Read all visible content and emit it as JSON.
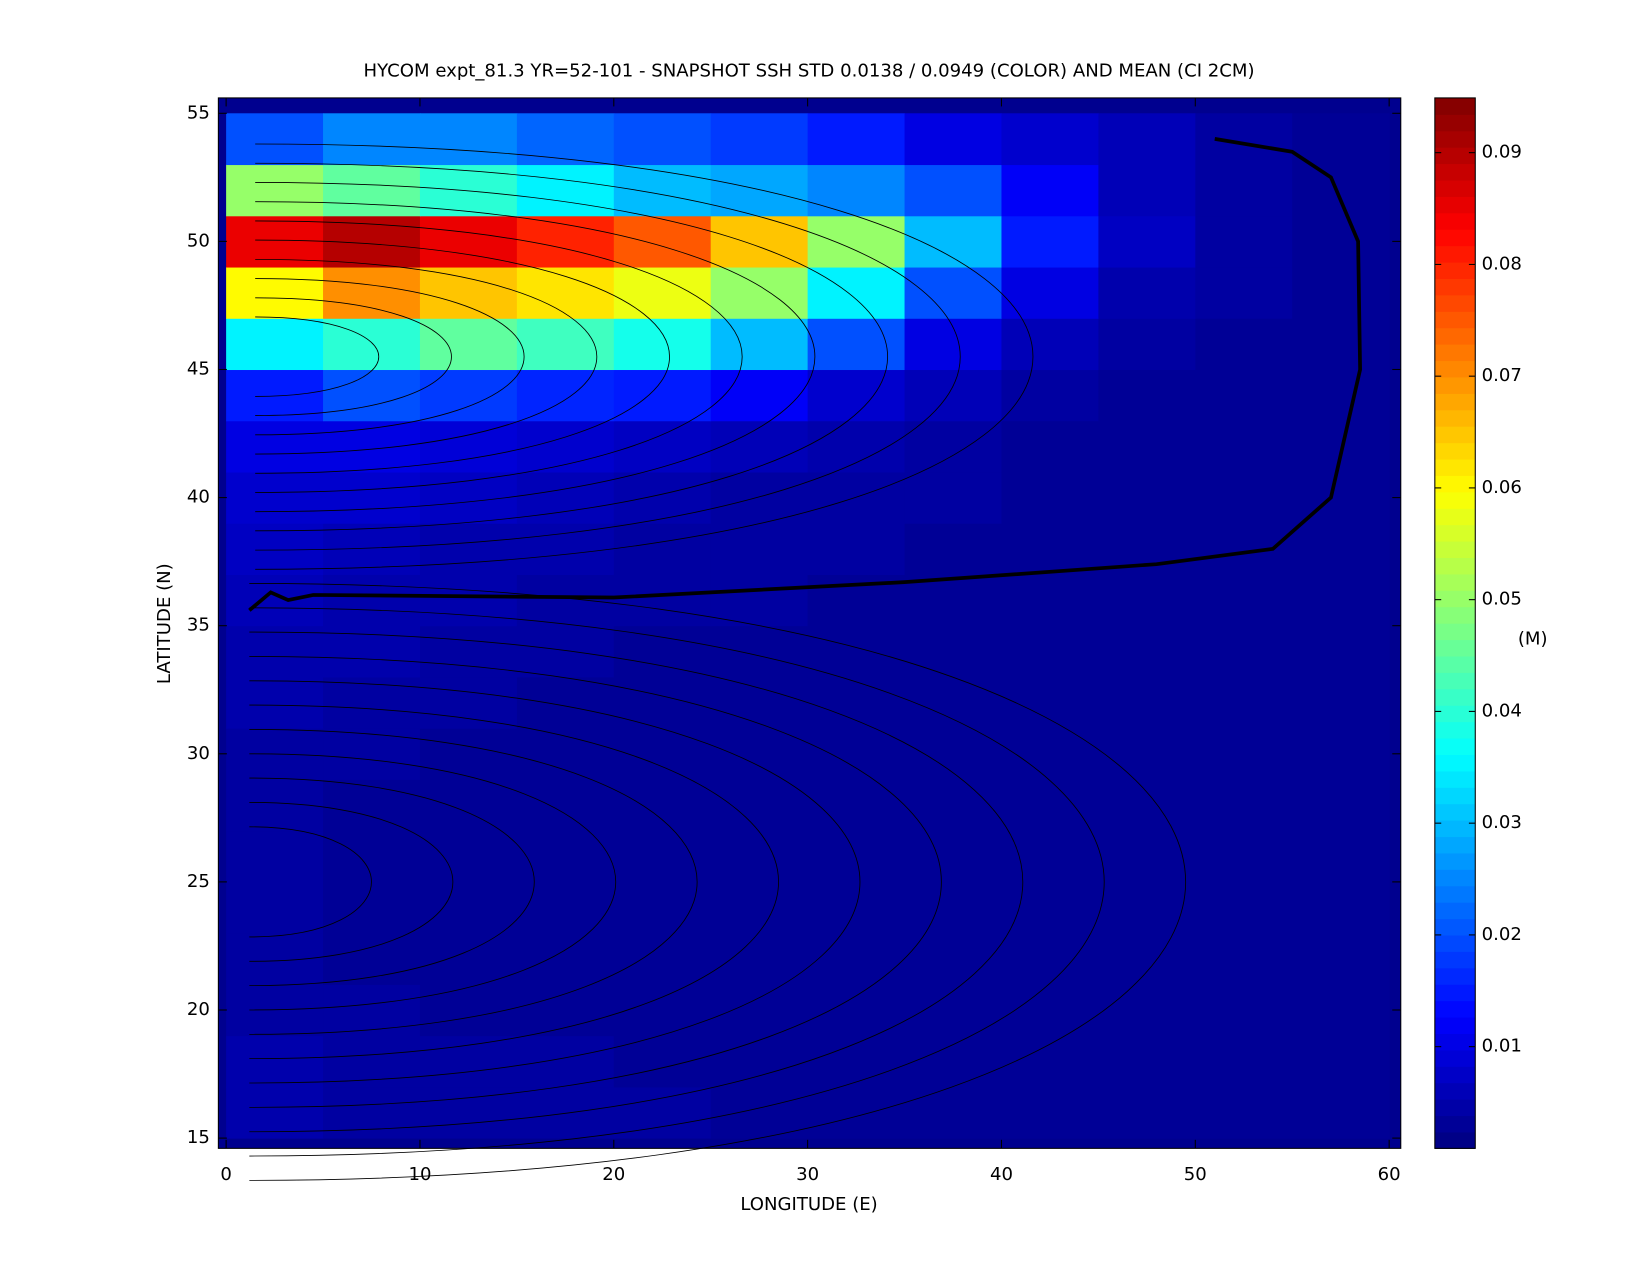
{
  "chart_data": {
    "type": "heatmap",
    "title": "HYCOM expt_81.3 YR=52-101 - SNAPSHOT SSH STD 0.0138 / 0.0949 (COLOR) AND MEAN (CI 2CM)",
    "x_label": "LONGITUDE (E)",
    "y_label": "LATITUDE (N)",
    "colorbar_label": "(M)",
    "x": [
      2.5,
      7.5,
      12.5,
      17.5,
      22.5,
      27.5,
      32.5,
      37.5,
      42.5,
      47.5,
      52.5,
      57.5
    ],
    "y": [
      16,
      18,
      20,
      22,
      24,
      26,
      28,
      30,
      32,
      34,
      36,
      38,
      40,
      42,
      44,
      46,
      48,
      50,
      52,
      54
    ],
    "values": [
      [
        0.005,
        0.004,
        0.004,
        0.004,
        0.004,
        0.003,
        0.003,
        0.003,
        0.003,
        0.003,
        0.003,
        0.003
      ],
      [
        0.005,
        0.004,
        0.004,
        0.004,
        0.003,
        0.003,
        0.003,
        0.003,
        0.003,
        0.003,
        0.003,
        0.003
      ],
      [
        0.004,
        0.004,
        0.003,
        0.003,
        0.003,
        0.003,
        0.003,
        0.003,
        0.003,
        0.003,
        0.003,
        0.003
      ],
      [
        0.004,
        0.003,
        0.003,
        0.003,
        0.003,
        0.003,
        0.003,
        0.003,
        0.003,
        0.003,
        0.003,
        0.003
      ],
      [
        0.004,
        0.003,
        0.003,
        0.003,
        0.003,
        0.003,
        0.003,
        0.003,
        0.003,
        0.003,
        0.003,
        0.003
      ],
      [
        0.004,
        0.003,
        0.003,
        0.003,
        0.003,
        0.003,
        0.003,
        0.003,
        0.003,
        0.003,
        0.003,
        0.003
      ],
      [
        0.004,
        0.003,
        0.003,
        0.003,
        0.003,
        0.003,
        0.003,
        0.003,
        0.003,
        0.003,
        0.003,
        0.003
      ],
      [
        0.004,
        0.004,
        0.003,
        0.003,
        0.003,
        0.003,
        0.003,
        0.003,
        0.003,
        0.003,
        0.003,
        0.003
      ],
      [
        0.005,
        0.004,
        0.004,
        0.003,
        0.003,
        0.003,
        0.003,
        0.003,
        0.003,
        0.003,
        0.003,
        0.003
      ],
      [
        0.005,
        0.005,
        0.004,
        0.004,
        0.003,
        0.003,
        0.003,
        0.003,
        0.003,
        0.003,
        0.003,
        0.003
      ],
      [
        0.006,
        0.005,
        0.005,
        0.004,
        0.004,
        0.004,
        0.003,
        0.003,
        0.003,
        0.003,
        0.003,
        0.003
      ],
      [
        0.007,
        0.006,
        0.005,
        0.005,
        0.004,
        0.004,
        0.004,
        0.003,
        0.003,
        0.003,
        0.003,
        0.003
      ],
      [
        0.008,
        0.008,
        0.007,
        0.006,
        0.005,
        0.004,
        0.004,
        0.004,
        0.003,
        0.003,
        0.003,
        0.003
      ],
      [
        0.01,
        0.01,
        0.009,
        0.008,
        0.007,
        0.006,
        0.005,
        0.004,
        0.003,
        0.003,
        0.003,
        0.003
      ],
      [
        0.015,
        0.02,
        0.018,
        0.016,
        0.015,
        0.012,
        0.008,
        0.006,
        0.004,
        0.003,
        0.003,
        0.003
      ],
      [
        0.035,
        0.04,
        0.045,
        0.042,
        0.038,
        0.03,
        0.02,
        0.01,
        0.006,
        0.004,
        0.003,
        0.003
      ],
      [
        0.06,
        0.07,
        0.065,
        0.062,
        0.058,
        0.05,
        0.035,
        0.02,
        0.01,
        0.005,
        0.004,
        0.003
      ],
      [
        0.085,
        0.09,
        0.085,
        0.08,
        0.075,
        0.065,
        0.05,
        0.03,
        0.015,
        0.007,
        0.004,
        0.003
      ],
      [
        0.05,
        0.045,
        0.04,
        0.035,
        0.03,
        0.028,
        0.025,
        0.02,
        0.012,
        0.006,
        0.004,
        0.003
      ],
      [
        0.02,
        0.025,
        0.025,
        0.022,
        0.02,
        0.018,
        0.015,
        0.01,
        0.008,
        0.006,
        0.004,
        0.003
      ]
    ],
    "xlim": [
      -0.4,
      60.6
    ],
    "ylim": [
      14.6,
      55.6
    ],
    "xticks": [
      0,
      10,
      20,
      30,
      40,
      50,
      60
    ],
    "yticks": [
      15,
      20,
      25,
      30,
      35,
      40,
      45,
      50,
      55
    ],
    "clim": [
      0.0009,
      0.0949
    ],
    "colorbar_ticks": [
      0.01,
      0.02,
      0.03,
      0.04,
      0.05,
      0.06,
      0.07,
      0.08,
      0.09
    ],
    "colormap": "jet"
  }
}
